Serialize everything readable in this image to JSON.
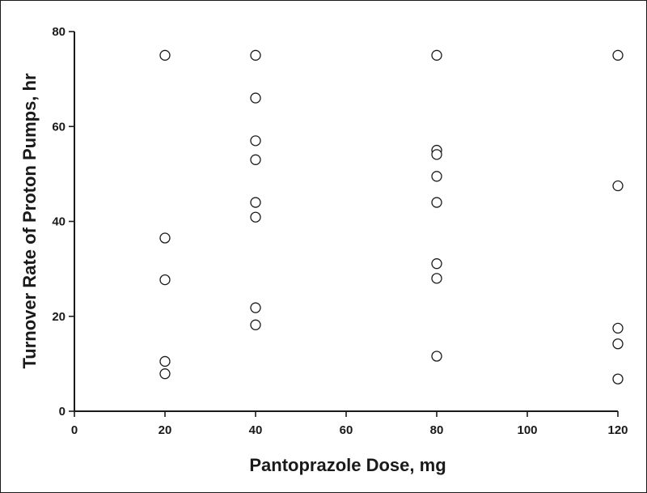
{
  "chart_data": {
    "type": "scatter",
    "title": "",
    "xlabel": "Pantoprazole Dose, mg",
    "ylabel": "Turnover Rate of Proton Pumps, hr",
    "xlim": [
      0,
      120
    ],
    "ylim": [
      0,
      80
    ],
    "xticks": [
      0,
      20,
      40,
      60,
      80,
      100,
      120
    ],
    "yticks": [
      0,
      20,
      40,
      60,
      80
    ],
    "grid": false,
    "marker": "open-circle",
    "colors": {
      "axis": "#1a1a1a",
      "marker_stroke": "#1a1a1a",
      "marker_fill": "#ffffff"
    },
    "points": [
      {
        "x": 20,
        "y": 75
      },
      {
        "x": 20,
        "y": 36.5
      },
      {
        "x": 20,
        "y": 27.7
      },
      {
        "x": 20,
        "y": 10.5
      },
      {
        "x": 20,
        "y": 7.9
      },
      {
        "x": 40,
        "y": 75
      },
      {
        "x": 40,
        "y": 66
      },
      {
        "x": 40,
        "y": 57
      },
      {
        "x": 40,
        "y": 53
      },
      {
        "x": 40,
        "y": 44
      },
      {
        "x": 40,
        "y": 40.9
      },
      {
        "x": 40,
        "y": 21.8
      },
      {
        "x": 40,
        "y": 18.2
      },
      {
        "x": 80,
        "y": 75
      },
      {
        "x": 80,
        "y": 55
      },
      {
        "x": 80,
        "y": 54.1
      },
      {
        "x": 80,
        "y": 49.5
      },
      {
        "x": 80,
        "y": 44
      },
      {
        "x": 80,
        "y": 31.1
      },
      {
        "x": 80,
        "y": 28
      },
      {
        "x": 80,
        "y": 11.6
      },
      {
        "x": 120,
        "y": 75
      },
      {
        "x": 120,
        "y": 47.5
      },
      {
        "x": 120,
        "y": 17.5
      },
      {
        "x": 120,
        "y": 14.2
      },
      {
        "x": 120,
        "y": 6.8
      }
    ]
  }
}
